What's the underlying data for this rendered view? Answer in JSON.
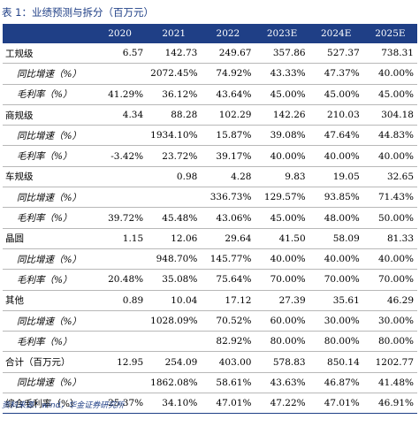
{
  "title": "表 1：业绩预测与拆分（百万元）",
  "source": "资料来源：wind，华金证券研究所",
  "header": [
    "",
    "2020",
    "2021",
    "2022",
    "2023E",
    "2024E",
    "2025E"
  ],
  "rows": [
    {
      "type": "main",
      "cells": [
        "工规级",
        "6.57",
        "142.73",
        "249.67",
        "357.86",
        "527.37",
        "738.31"
      ]
    },
    {
      "type": "sub",
      "cells": [
        "同比增速（%）",
        "",
        "2072.45%",
        "74.92%",
        "43.33%",
        "47.37%",
        "40.00%"
      ]
    },
    {
      "type": "sub",
      "cells": [
        "毛利率（%）",
        "41.29%",
        "36.12%",
        "43.64%",
        "45.00%",
        "45.00%",
        "45.00%"
      ]
    },
    {
      "type": "main",
      "cells": [
        "商规级",
        "4.34",
        "88.28",
        "102.29",
        "142.26",
        "210.03",
        "304.18"
      ]
    },
    {
      "type": "sub",
      "cells": [
        "同比增速（%）",
        "",
        "1934.10%",
        "15.87%",
        "39.08%",
        "47.64%",
        "44.83%"
      ]
    },
    {
      "type": "sub",
      "cells": [
        "毛利率（%）",
        "-3.42%",
        "23.72%",
        "39.17%",
        "40.00%",
        "40.00%",
        "40.00%"
      ]
    },
    {
      "type": "main",
      "cells": [
        "车规级",
        "",
        "0.98",
        "4.28",
        "9.83",
        "19.05",
        "32.65"
      ]
    },
    {
      "type": "sub",
      "cells": [
        "同比增速（%）",
        "",
        "",
        "336.73%",
        "129.57%",
        "93.85%",
        "71.43%"
      ]
    },
    {
      "type": "sub",
      "cells": [
        "毛利率（%）",
        "39.72%",
        "45.48%",
        "43.06%",
        "45.00%",
        "48.00%",
        "50.00%"
      ]
    },
    {
      "type": "main",
      "cells": [
        "晶圆",
        "1.15",
        "12.06",
        "29.64",
        "41.50",
        "58.09",
        "81.33"
      ]
    },
    {
      "type": "sub",
      "cells": [
        "同比增速（%）",
        "",
        "948.70%",
        "145.77%",
        "40.00%",
        "40.00%",
        "40.00%"
      ]
    },
    {
      "type": "sub",
      "cells": [
        "毛利率（%）",
        "20.48%",
        "35.08%",
        "75.64%",
        "70.00%",
        "70.00%",
        "70.00%"
      ]
    },
    {
      "type": "main",
      "cells": [
        "其他",
        "0.89",
        "10.04",
        "17.12",
        "27.39",
        "35.61",
        "46.29"
      ]
    },
    {
      "type": "sub",
      "cells": [
        "同比增速（%）",
        "",
        "1028.09%",
        "70.52%",
        "60.00%",
        "30.00%",
        "30.00%"
      ]
    },
    {
      "type": "sub",
      "cells": [
        "毛利率（%）",
        "",
        "",
        "82.92%",
        "80.00%",
        "80.00%",
        "80.00%"
      ]
    },
    {
      "type": "main",
      "cells": [
        "合计（百万元）",
        "12.95",
        "254.09",
        "403.00",
        "578.83",
        "850.14",
        "1202.77"
      ]
    },
    {
      "type": "sub",
      "cells": [
        "同比增速（%）",
        "",
        "1862.08%",
        "58.61%",
        "43.63%",
        "46.87%",
        "41.48%"
      ]
    },
    {
      "type": "main",
      "cells": [
        "综合毛利率（%）",
        "25.37%",
        "34.10%",
        "47.01%",
        "47.22%",
        "47.01%",
        "46.91%"
      ]
    }
  ]
}
